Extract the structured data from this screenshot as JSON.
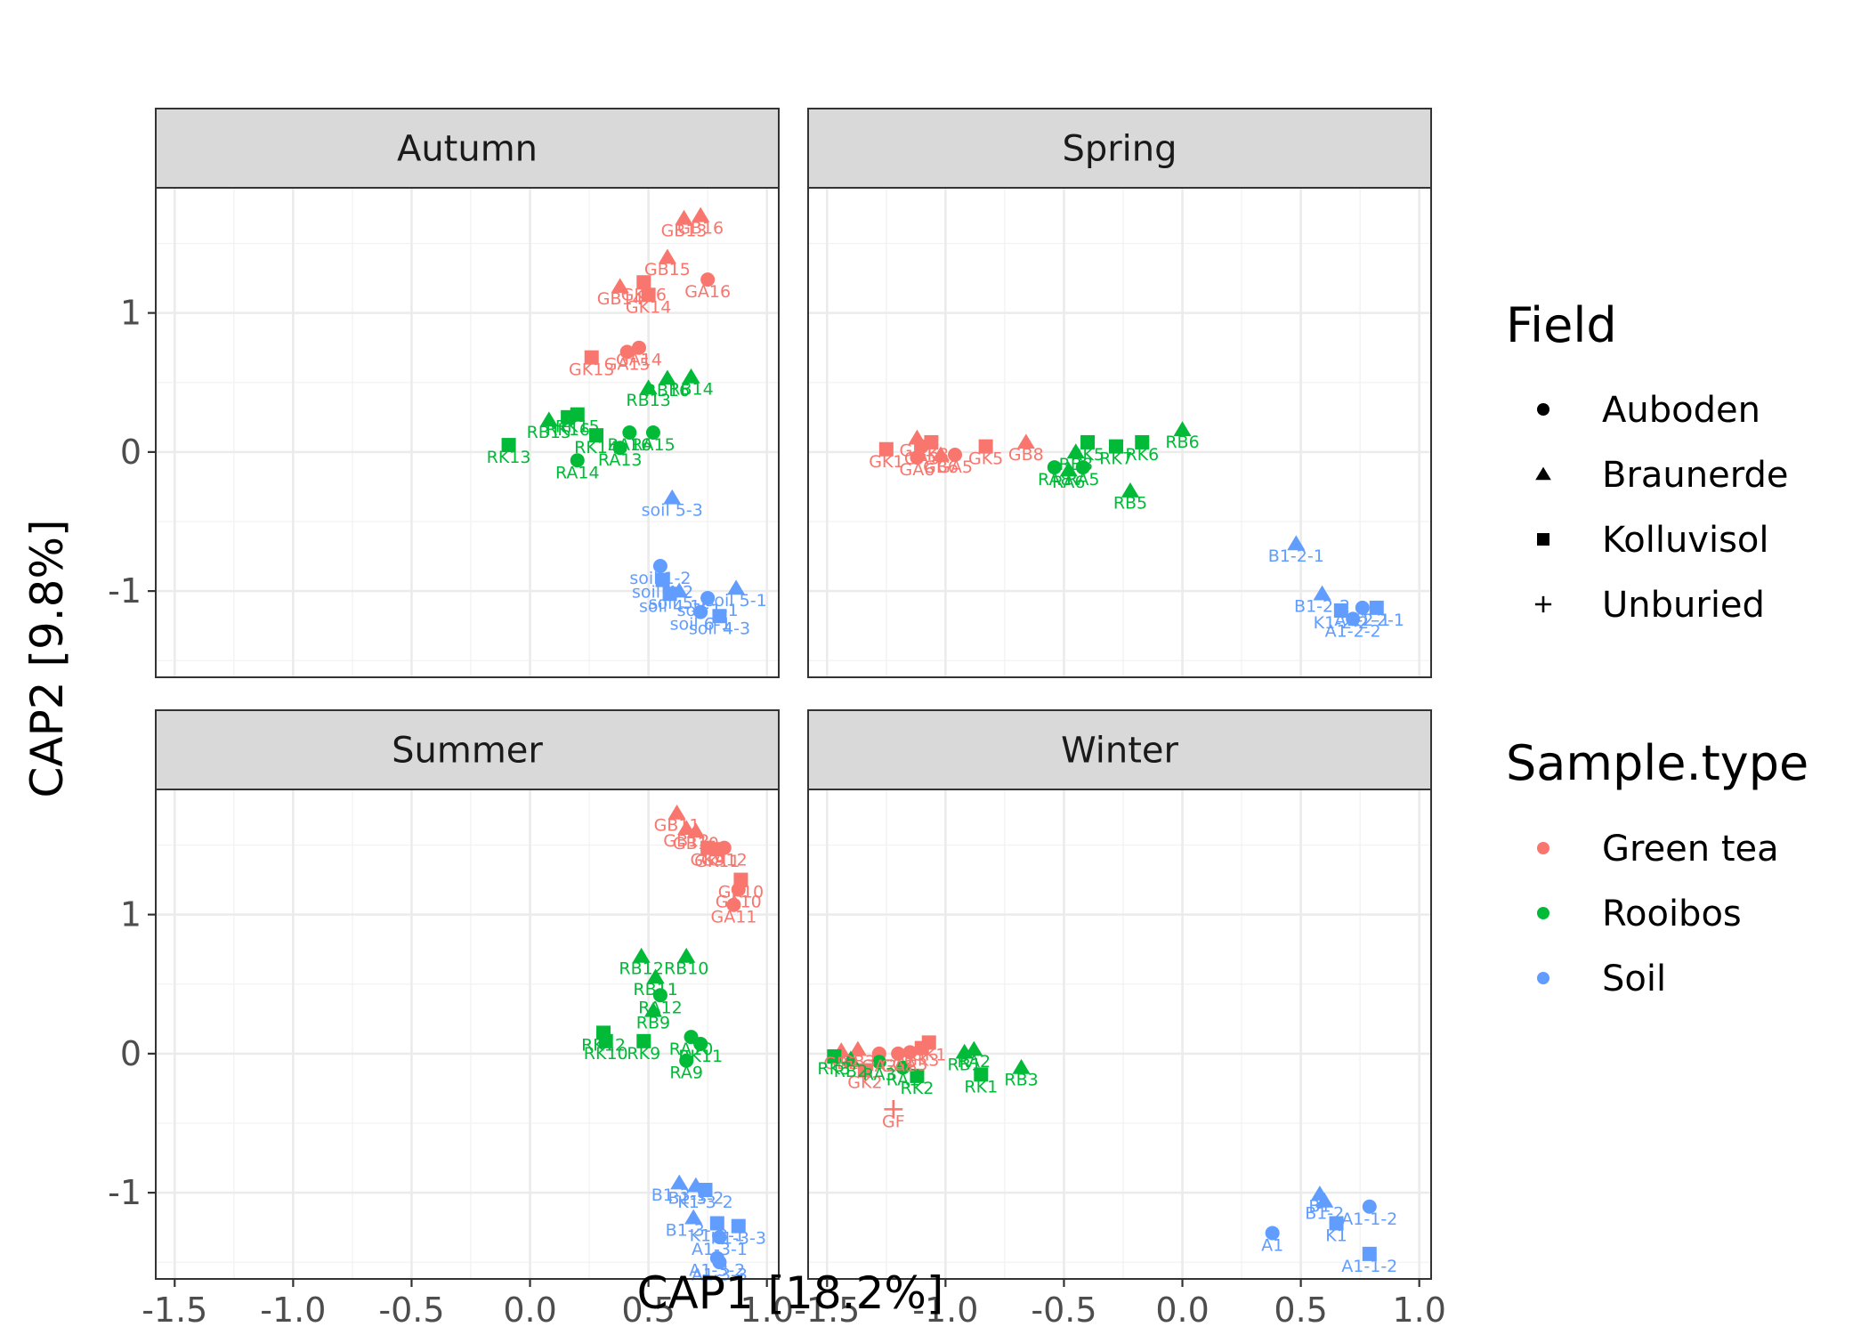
{
  "chart_data": {
    "type": "scatter",
    "xlabel": "CAP1   [18.2%]",
    "ylabel": "CAP2   [9.8%]",
    "xlim": [
      -1.58,
      1.05
    ],
    "ylim": [
      -1.62,
      1.9
    ],
    "x_ticks": [
      "-1.5",
      "-1.0",
      "-0.5",
      "0.0",
      "0.5",
      "1.0"
    ],
    "y_ticks": [
      "-1",
      "0",
      "1"
    ],
    "grid": true,
    "facet_layout": "2x2",
    "legend_placement": "right",
    "legends": {
      "shape": {
        "title": "Field",
        "entries": [
          "Auboden",
          "Braunerde",
          "Kolluvisol",
          "Unburied"
        ],
        "shapes": [
          "circle",
          "triangle",
          "square",
          "plus"
        ]
      },
      "color": {
        "title": "Sample.type",
        "entries": [
          "Green tea",
          "Rooibos",
          "Soil"
        ],
        "colors": [
          "#F8766D",
          "#00BA38",
          "#619CFF"
        ]
      }
    },
    "facets": [
      {
        "name": "Autumn",
        "points": [
          {
            "x": 0.65,
            "y": 1.68,
            "type": "Green tea",
            "field": "Braunerde",
            "label": "GB13"
          },
          {
            "x": 0.72,
            "y": 1.7,
            "type": "Green tea",
            "field": "Braunerde",
            "label": "GB16"
          },
          {
            "x": 0.58,
            "y": 1.4,
            "type": "Green tea",
            "field": "Braunerde",
            "label": "GB15"
          },
          {
            "x": 0.75,
            "y": 1.24,
            "type": "Green tea",
            "field": "Auboden",
            "label": "GA16"
          },
          {
            "x": 0.38,
            "y": 1.19,
            "type": "Green tea",
            "field": "Braunerde",
            "label": "GB14"
          },
          {
            "x": 0.48,
            "y": 1.22,
            "type": "Green tea",
            "field": "Kolluvisol",
            "label": "GK16"
          },
          {
            "x": 0.5,
            "y": 1.13,
            "type": "Green tea",
            "field": "Kolluvisol",
            "label": "GK14"
          },
          {
            "x": 0.26,
            "y": 0.68,
            "type": "Green tea",
            "field": "Kolluvisol",
            "label": "GK13"
          },
          {
            "x": 0.41,
            "y": 0.72,
            "type": "Green tea",
            "field": "Auboden",
            "label": "GA15"
          },
          {
            "x": 0.46,
            "y": 0.75,
            "type": "Green tea",
            "field": "Auboden",
            "label": "GA14"
          },
          {
            "x": 0.5,
            "y": 0.46,
            "type": "Rooibos",
            "field": "Braunerde",
            "label": "RB13"
          },
          {
            "x": 0.58,
            "y": 0.53,
            "type": "Rooibos",
            "field": "Braunerde",
            "label": "RB16"
          },
          {
            "x": 0.68,
            "y": 0.54,
            "type": "Rooibos",
            "field": "Braunerde",
            "label": "RB14"
          },
          {
            "x": 0.08,
            "y": 0.23,
            "type": "Rooibos",
            "field": "Braunerde",
            "label": "RB15"
          },
          {
            "x": 0.16,
            "y": 0.25,
            "type": "Rooibos",
            "field": "Kolluvisol",
            "label": "RK16"
          },
          {
            "x": 0.2,
            "y": 0.27,
            "type": "Rooibos",
            "field": "Kolluvisol",
            "label": "RK15"
          },
          {
            "x": 0.28,
            "y": 0.12,
            "type": "Rooibos",
            "field": "Kolluvisol",
            "label": "RK14"
          },
          {
            "x": -0.09,
            "y": 0.05,
            "type": "Rooibos",
            "field": "Kolluvisol",
            "label": "RK13"
          },
          {
            "x": 0.42,
            "y": 0.14,
            "type": "Rooibos",
            "field": "Auboden",
            "label": "RA16"
          },
          {
            "x": 0.52,
            "y": 0.14,
            "type": "Rooibos",
            "field": "Auboden",
            "label": "RA15"
          },
          {
            "x": 0.38,
            "y": 0.03,
            "type": "Rooibos",
            "field": "Auboden",
            "label": "RA13"
          },
          {
            "x": 0.2,
            "y": -0.06,
            "type": "Rooibos",
            "field": "Auboden",
            "label": "RA14"
          },
          {
            "x": 0.6,
            "y": -0.33,
            "type": "Soil",
            "field": "Braunerde",
            "label": "soil 5-3"
          },
          {
            "x": 0.55,
            "y": -0.82,
            "type": "Soil",
            "field": "Auboden",
            "label": "soil 1-2"
          },
          {
            "x": 0.56,
            "y": -0.92,
            "type": "Soil",
            "field": "Kolluvisol",
            "label": "soil 4-2"
          },
          {
            "x": 0.59,
            "y": -1.02,
            "type": "Soil",
            "field": "Kolluvisol",
            "label": "soil 4-1"
          },
          {
            "x": 0.63,
            "y": -1.0,
            "type": "Soil",
            "field": "Braunerde",
            "label": "soil 5-2"
          },
          {
            "x": 0.87,
            "y": -0.98,
            "type": "Soil",
            "field": "Braunerde",
            "label": "soil 5-1"
          },
          {
            "x": 0.75,
            "y": -1.05,
            "type": "Soil",
            "field": "Auboden",
            "label": "soil 1-1"
          },
          {
            "x": 0.72,
            "y": -1.15,
            "type": "Soil",
            "field": "Auboden",
            "label": "soil 6-1"
          },
          {
            "x": 0.8,
            "y": -1.18,
            "type": "Soil",
            "field": "Kolluvisol",
            "label": "soil 4-3"
          }
        ]
      },
      {
        "name": "Spring",
        "points": [
          {
            "x": -1.25,
            "y": 0.02,
            "type": "Green tea",
            "field": "Kolluvisol",
            "label": "GK1"
          },
          {
            "x": -1.12,
            "y": 0.1,
            "type": "Green tea",
            "field": "Braunerde",
            "label": "GB1"
          },
          {
            "x": -1.1,
            "y": 0.04,
            "type": "Green tea",
            "field": "Auboden",
            "label": "GA3"
          },
          {
            "x": -1.06,
            "y": 0.07,
            "type": "Green tea",
            "field": "Kolluvisol",
            "label": "GK8"
          },
          {
            "x": -1.02,
            "y": -0.02,
            "type": "Green tea",
            "field": "Braunerde",
            "label": "GB6"
          },
          {
            "x": -1.12,
            "y": -0.04,
            "type": "Green tea",
            "field": "Auboden",
            "label": "GA6"
          },
          {
            "x": -0.96,
            "y": -0.02,
            "type": "Green tea",
            "field": "Auboden",
            "label": "GA5"
          },
          {
            "x": -0.83,
            "y": 0.04,
            "type": "Green tea",
            "field": "Kolluvisol",
            "label": "GK5"
          },
          {
            "x": -0.66,
            "y": 0.07,
            "type": "Green tea",
            "field": "Braunerde",
            "label": "GB8"
          },
          {
            "x": -0.4,
            "y": 0.07,
            "type": "Rooibos",
            "field": "Kolluvisol",
            "label": "RK5"
          },
          {
            "x": -0.45,
            "y": 0.0,
            "type": "Rooibos",
            "field": "Braunerde",
            "label": "RB8"
          },
          {
            "x": -0.28,
            "y": 0.04,
            "type": "Rooibos",
            "field": "Kolluvisol",
            "label": "RK7"
          },
          {
            "x": -0.17,
            "y": 0.07,
            "type": "Rooibos",
            "field": "Kolluvisol",
            "label": "RK6"
          },
          {
            "x": 0.0,
            "y": 0.16,
            "type": "Rooibos",
            "field": "Braunerde",
            "label": "RB6"
          },
          {
            "x": -0.54,
            "y": -0.11,
            "type": "Rooibos",
            "field": "Auboden",
            "label": "RA8"
          },
          {
            "x": -0.48,
            "y": -0.13,
            "type": "Rooibos",
            "field": "Braunerde",
            "label": "RA6"
          },
          {
            "x": -0.42,
            "y": -0.11,
            "type": "Rooibos",
            "field": "Auboden",
            "label": "RA5"
          },
          {
            "x": -0.22,
            "y": -0.28,
            "type": "Rooibos",
            "field": "Braunerde",
            "label": "RB5"
          },
          {
            "x": 0.48,
            "y": -0.66,
            "type": "Soil",
            "field": "Braunerde",
            "label": "B1-2-1"
          },
          {
            "x": 0.59,
            "y": -1.02,
            "type": "Soil",
            "field": "Braunerde",
            "label": "B1-2-2"
          },
          {
            "x": 0.67,
            "y": -1.14,
            "type": "Soil",
            "field": "Kolluvisol",
            "label": "K1-2-2"
          },
          {
            "x": 0.76,
            "y": -1.12,
            "type": "Soil",
            "field": "Auboden",
            "label": "A1-2-1"
          },
          {
            "x": 0.82,
            "y": -1.12,
            "type": "Soil",
            "field": "Kolluvisol",
            "label": "K1-2-1"
          },
          {
            "x": 0.72,
            "y": -1.2,
            "type": "Soil",
            "field": "Auboden",
            "label": "A1-2-2"
          }
        ]
      },
      {
        "name": "Summer",
        "points": [
          {
            "x": 0.62,
            "y": 1.73,
            "type": "Green tea",
            "field": "Braunerde",
            "label": "GB11"
          },
          {
            "x": 0.66,
            "y": 1.62,
            "type": "Green tea",
            "field": "Braunerde",
            "label": "GB12"
          },
          {
            "x": 0.7,
            "y": 1.6,
            "type": "Green tea",
            "field": "Braunerde",
            "label": "GB10"
          },
          {
            "x": 0.75,
            "y": 1.48,
            "type": "Green tea",
            "field": "Kolluvisol",
            "label": "GK9"
          },
          {
            "x": 0.82,
            "y": 1.48,
            "type": "Green tea",
            "field": "Auboden",
            "label": "GA12"
          },
          {
            "x": 0.79,
            "y": 1.47,
            "type": "Green tea",
            "field": "Kolluvisol",
            "label": "GK11"
          },
          {
            "x": 0.89,
            "y": 1.25,
            "type": "Green tea",
            "field": "Kolluvisol",
            "label": "GK10"
          },
          {
            "x": 0.88,
            "y": 1.18,
            "type": "Green tea",
            "field": "Auboden",
            "label": "GA10"
          },
          {
            "x": 0.86,
            "y": 1.07,
            "type": "Green tea",
            "field": "Auboden",
            "label": "GA11"
          },
          {
            "x": 0.47,
            "y": 0.7,
            "type": "Rooibos",
            "field": "Braunerde",
            "label": "RB12"
          },
          {
            "x": 0.53,
            "y": 0.55,
            "type": "Rooibos",
            "field": "Braunerde",
            "label": "RB11"
          },
          {
            "x": 0.66,
            "y": 0.7,
            "type": "Rooibos",
            "field": "Braunerde",
            "label": "RB10"
          },
          {
            "x": 0.55,
            "y": 0.42,
            "type": "Rooibos",
            "field": "Auboden",
            "label": "RA12"
          },
          {
            "x": 0.52,
            "y": 0.31,
            "type": "Rooibos",
            "field": "Braunerde",
            "label": "RB9"
          },
          {
            "x": 0.31,
            "y": 0.15,
            "type": "Rooibos",
            "field": "Kolluvisol",
            "label": "RK12"
          },
          {
            "x": 0.32,
            "y": 0.09,
            "type": "Rooibos",
            "field": "Kolluvisol",
            "label": "RK10"
          },
          {
            "x": 0.48,
            "y": 0.09,
            "type": "Rooibos",
            "field": "Kolluvisol",
            "label": "RK9"
          },
          {
            "x": 0.68,
            "y": 0.12,
            "type": "Rooibos",
            "field": "Auboden",
            "label": "RA10"
          },
          {
            "x": 0.72,
            "y": 0.07,
            "type": "Rooibos",
            "field": "Auboden",
            "label": "RK11"
          },
          {
            "x": 0.66,
            "y": -0.05,
            "type": "Rooibos",
            "field": "Auboden",
            "label": "RA9"
          },
          {
            "x": 0.63,
            "y": -0.93,
            "type": "Soil",
            "field": "Braunerde",
            "label": "B1-3-1"
          },
          {
            "x": 0.7,
            "y": -0.95,
            "type": "Soil",
            "field": "Braunerde",
            "label": "B1-3-2"
          },
          {
            "x": 0.74,
            "y": -0.98,
            "type": "Soil",
            "field": "Kolluvisol",
            "label": "K1-3-2"
          },
          {
            "x": 0.69,
            "y": -1.18,
            "type": "Soil",
            "field": "Braunerde",
            "label": "B1-3-3"
          },
          {
            "x": 0.79,
            "y": -1.22,
            "type": "Soil",
            "field": "Kolluvisol",
            "label": "K1-3-1"
          },
          {
            "x": 0.88,
            "y": -1.24,
            "type": "Soil",
            "field": "Kolluvisol",
            "label": "K1-3-3"
          },
          {
            "x": 0.8,
            "y": -1.32,
            "type": "Soil",
            "field": "Auboden",
            "label": "A1-3-1"
          },
          {
            "x": 0.79,
            "y": -1.47,
            "type": "Soil",
            "field": "Auboden",
            "label": "A1-3-2"
          },
          {
            "x": 0.8,
            "y": -1.5,
            "type": "Soil",
            "field": "Auboden",
            "label": "A1-3-3"
          }
        ]
      },
      {
        "name": "Winter",
        "points": [
          {
            "x": -1.44,
            "y": 0.02,
            "type": "Green tea",
            "field": "Braunerde",
            "label": "GB2"
          },
          {
            "x": -1.37,
            "y": 0.03,
            "type": "Green tea",
            "field": "Braunerde",
            "label": "GB3"
          },
          {
            "x": -1.28,
            "y": 0.0,
            "type": "Green tea",
            "field": "Auboden",
            "label": "GA2"
          },
          {
            "x": -1.2,
            "y": 0.0,
            "type": "Green tea",
            "field": "Auboden",
            "label": "GA1"
          },
          {
            "x": -1.15,
            "y": 0.01,
            "type": "Green tea",
            "field": "Auboden",
            "label": "GA3"
          },
          {
            "x": -1.1,
            "y": 0.04,
            "type": "Green tea",
            "field": "Kolluvisol",
            "label": "GK3"
          },
          {
            "x": -1.07,
            "y": 0.08,
            "type": "Green tea",
            "field": "Kolluvisol",
            "label": "GK1"
          },
          {
            "x": -1.34,
            "y": -0.12,
            "type": "Green tea",
            "field": "Kolluvisol",
            "label": "GK2"
          },
          {
            "x": -1.22,
            "y": -0.4,
            "type": "Green tea",
            "field": "Unburied",
            "label": "GF"
          },
          {
            "x": -1.47,
            "y": -0.02,
            "type": "Rooibos",
            "field": "Kolluvisol",
            "label": "RK3"
          },
          {
            "x": -1.4,
            "y": -0.04,
            "type": "Rooibos",
            "field": "Braunerde",
            "label": "RB2"
          },
          {
            "x": -1.28,
            "y": -0.06,
            "type": "Rooibos",
            "field": "Auboden",
            "label": "RA3"
          },
          {
            "x": -1.18,
            "y": -0.1,
            "type": "Rooibos",
            "field": "Auboden",
            "label": "RA1"
          },
          {
            "x": -1.12,
            "y": -0.16,
            "type": "Rooibos",
            "field": "Kolluvisol",
            "label": "RK2"
          },
          {
            "x": -0.92,
            "y": 0.01,
            "type": "Rooibos",
            "field": "Braunerde",
            "label": "RB1"
          },
          {
            "x": -0.88,
            "y": 0.03,
            "type": "Rooibos",
            "field": "Braunerde",
            "label": "RA2"
          },
          {
            "x": -0.85,
            "y": -0.15,
            "type": "Rooibos",
            "field": "Kolluvisol",
            "label": "RK1"
          },
          {
            "x": -0.68,
            "y": -0.1,
            "type": "Rooibos",
            "field": "Braunerde",
            "label": "RB3"
          },
          {
            "x": 0.38,
            "y": -1.29,
            "type": "Soil",
            "field": "Auboden",
            "label": "A1"
          },
          {
            "x": 0.58,
            "y": -1.01,
            "type": "Soil",
            "field": "Braunerde",
            "label": "B1"
          },
          {
            "x": 0.6,
            "y": -1.06,
            "type": "Soil",
            "field": "Braunerde",
            "label": "B1-2"
          },
          {
            "x": 0.65,
            "y": -1.22,
            "type": "Soil",
            "field": "Kolluvisol",
            "label": "K1"
          },
          {
            "x": 0.79,
            "y": -1.1,
            "type": "Soil",
            "field": "Auboden",
            "label": "A1-1-2"
          },
          {
            "x": 0.79,
            "y": -1.44,
            "type": "Soil",
            "field": "Kolluvisol",
            "label": "A1-1-2"
          }
        ]
      }
    ]
  }
}
